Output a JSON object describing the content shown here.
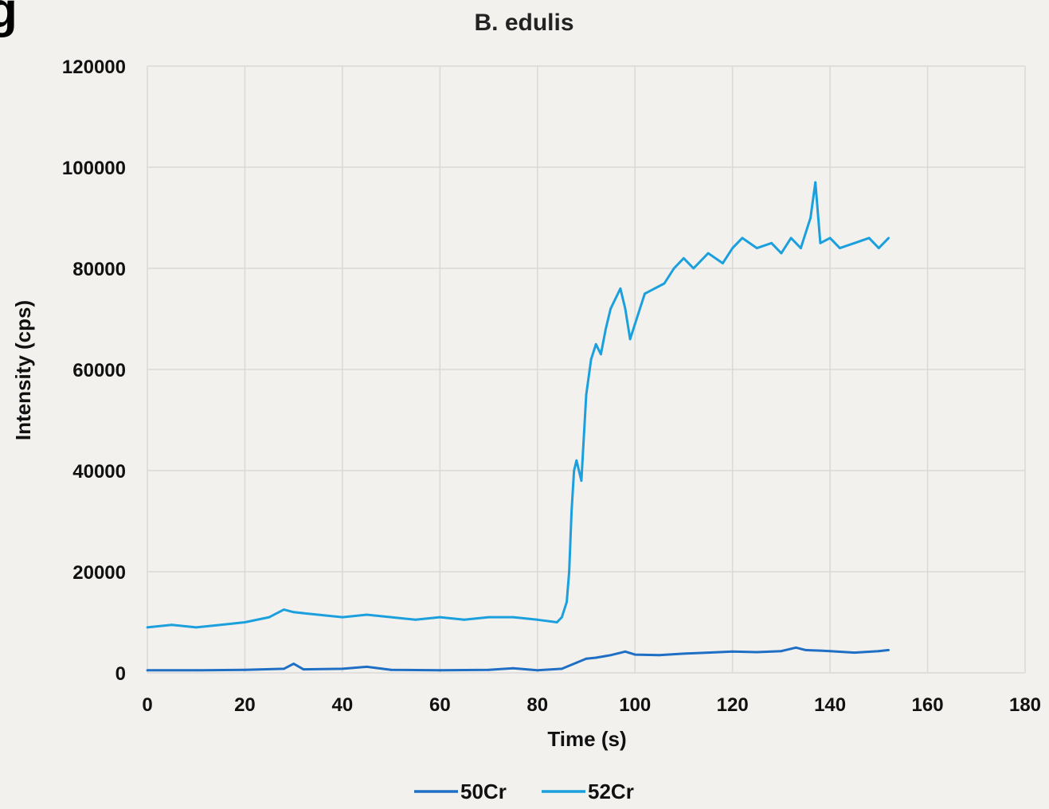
{
  "panel_label": "g",
  "chart_data": {
    "type": "line",
    "title": "B. edulis",
    "xlabel": "Time (s)",
    "ylabel": "Intensity (cps)",
    "xlim": [
      0,
      180
    ],
    "ylim": [
      0,
      120000
    ],
    "x_ticks": [
      "0",
      "20",
      "40",
      "60",
      "80",
      "100",
      "120",
      "140",
      "160",
      "180"
    ],
    "y_ticks": [
      "0",
      "20000",
      "40000",
      "60000",
      "80000",
      "100000",
      "120000"
    ],
    "grid": true,
    "legend_position": "bottom",
    "series": [
      {
        "name": "50Cr",
        "color": "#1f6fc5",
        "x": [
          0,
          10,
          20,
          28,
          30,
          32,
          40,
          45,
          50,
          60,
          70,
          75,
          80,
          85,
          88,
          90,
          92,
          95,
          98,
          100,
          105,
          110,
          115,
          120,
          125,
          130,
          133,
          135,
          138,
          140,
          145,
          150,
          152
        ],
        "y": [
          500,
          500,
          600,
          800,
          1800,
          700,
          800,
          1200,
          600,
          500,
          600,
          900,
          500,
          800,
          2000,
          2800,
          3000,
          3500,
          4200,
          3600,
          3500,
          3800,
          4000,
          4200,
          4100,
          4300,
          5000,
          4500,
          4400,
          4300,
          4000,
          4300,
          4500
        ]
      },
      {
        "name": "52Cr",
        "color": "#1ba0dd",
        "x": [
          0,
          5,
          10,
          15,
          20,
          25,
          28,
          30,
          35,
          40,
          45,
          50,
          55,
          60,
          65,
          70,
          75,
          80,
          84,
          85,
          86,
          86.5,
          87,
          87.5,
          88,
          89,
          90,
          91,
          92,
          93,
          94,
          95,
          96,
          97,
          98,
          99,
          100,
          102,
          104,
          106,
          108,
          110,
          112,
          115,
          118,
          120,
          122,
          125,
          128,
          130,
          132,
          134,
          136,
          137,
          138,
          140,
          142,
          145,
          148,
          150,
          152
        ],
        "y": [
          9000,
          9500,
          9000,
          9500,
          10000,
          11000,
          12500,
          12000,
          11500,
          11000,
          11500,
          11000,
          10500,
          11000,
          10500,
          11000,
          11000,
          10500,
          10000,
          11000,
          14000,
          20000,
          32000,
          40000,
          42000,
          38000,
          55000,
          62000,
          65000,
          63000,
          68000,
          72000,
          74000,
          76000,
          72000,
          66000,
          69000,
          75000,
          76000,
          77000,
          80000,
          82000,
          80000,
          83000,
          81000,
          84000,
          86000,
          84000,
          85000,
          83000,
          86000,
          84000,
          90000,
          97000,
          85000,
          86000,
          84000,
          85000,
          86000,
          84000,
          86000
        ]
      }
    ]
  }
}
